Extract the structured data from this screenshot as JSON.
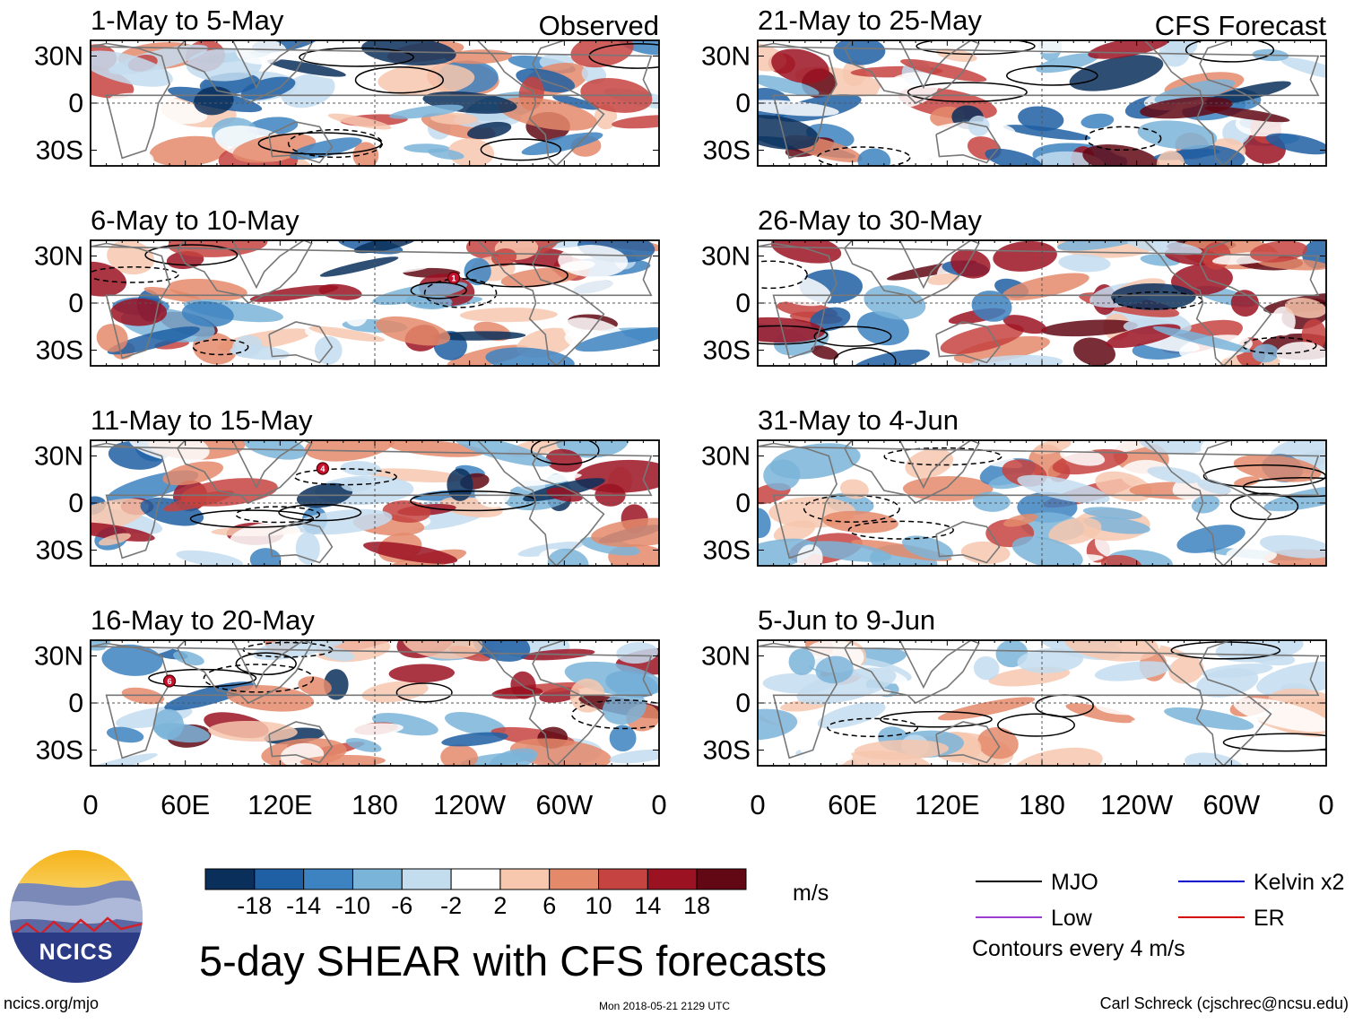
{
  "chart_data": {
    "type": "heatmap",
    "title": "5-day SHEAR with CFS forecasts",
    "variable": "SHEAR",
    "units": "m/s",
    "columns": [
      {
        "label": "Observed",
        "panels": [
          {
            "period": "1-May to 5-May"
          },
          {
            "period": "6-May to 10-May",
            "storm_markers": [
              "1"
            ]
          },
          {
            "period": "11-May to 15-May",
            "storm_markers": [
              "4"
            ]
          },
          {
            "period": "16-May to 20-May",
            "storm_markers": [
              "6"
            ]
          }
        ]
      },
      {
        "label": "CFS Forecast",
        "panels": [
          {
            "period": "21-May to 25-May"
          },
          {
            "period": "26-May to 30-May"
          },
          {
            "period": "31-May to 4-Jun"
          },
          {
            "period": "5-Jun to 9-Jun"
          }
        ]
      }
    ],
    "lat_ticks": [
      "30N",
      "0",
      "30S"
    ],
    "lat_values": [
      30,
      0,
      -30
    ],
    "lon_ticks": [
      "0",
      "60E",
      "120E",
      "180",
      "120W",
      "60W",
      "0"
    ],
    "lon_values": [
      0,
      60,
      120,
      180,
      240,
      300,
      360
    ],
    "xlim": [
      0,
      360
    ],
    "ylim": [
      -40,
      40
    ],
    "colorbar": {
      "ticks": [
        "-18",
        "-14",
        "-10",
        "-6",
        "-2",
        "2",
        "6",
        "10",
        "14",
        "18"
      ],
      "colors": [
        "#0b2f5b",
        "#1f5fa3",
        "#3d82c1",
        "#7bb4d9",
        "#c3dcee",
        "#ffffff",
        "#f7c7ae",
        "#e48a6b",
        "#c54340",
        "#9b1222",
        "#620814"
      ],
      "units_label": "m/s"
    },
    "legend": [
      {
        "label": "MJO",
        "color": "#000000"
      },
      {
        "label": "Kelvin x2",
        "color": "#0000cc"
      },
      {
        "label": "Low",
        "color": "#9b3fd1"
      },
      {
        "label": "ER",
        "color": "#d40000"
      }
    ],
    "contour_note": "Contours every 4 m/s"
  },
  "logo": {
    "text": "NCICS"
  },
  "footer": {
    "left": "ncics.org/mjo",
    "center": "Mon 2018-05-21 2129 UTC",
    "right": "Carl Schreck (cjschrec@ncsu.edu)"
  }
}
